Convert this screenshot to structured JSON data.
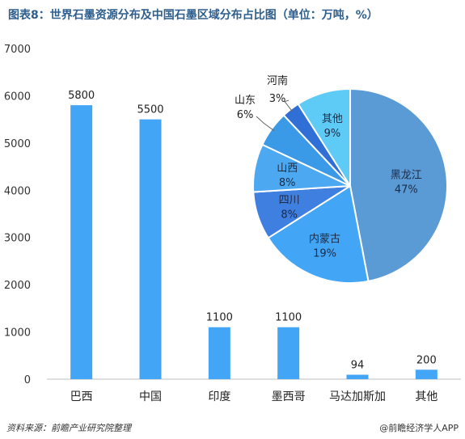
{
  "title": "图表8：世界石墨资源分布及中国石墨区域分布占比图（单位：万吨，%）",
  "footer": {
    "source": "资料来源：前瞻产业研究院整理",
    "brand": "@前瞻经济学人APP"
  },
  "chart_data": [
    {
      "type": "bar",
      "categories": [
        "巴西",
        "中国",
        "印度",
        "墨西哥",
        "马达加斯加",
        "其他"
      ],
      "values": [
        5800,
        5500,
        1100,
        1100,
        94,
        200
      ],
      "ylim": [
        0,
        7000
      ],
      "yticks": [
        0,
        1000,
        2000,
        3000,
        4000,
        5000,
        6000,
        7000
      ],
      "color": "#42a5f5"
    },
    {
      "type": "pie",
      "slices": [
        {
          "label": "黑龙江",
          "pct": "47%",
          "value": 47,
          "color": "#5b9bd5"
        },
        {
          "label": "内蒙古",
          "pct": "19%",
          "value": 19,
          "color": "#42a5f5"
        },
        {
          "label": "四川",
          "pct": "8%",
          "value": 8,
          "color": "#3f7fe0"
        },
        {
          "label": "山西",
          "pct": "8%",
          "value": 8,
          "color": "#4ca8f0"
        },
        {
          "label": "山东",
          "pct": "6%",
          "value": 6,
          "color": "#3a9ae8"
        },
        {
          "label": "河南",
          "pct": "3%",
          "value": 3,
          "color": "#2f6fd6"
        },
        {
          "label": "其他",
          "pct": "9%",
          "value": 9,
          "color": "#5ecbf7"
        }
      ]
    }
  ]
}
